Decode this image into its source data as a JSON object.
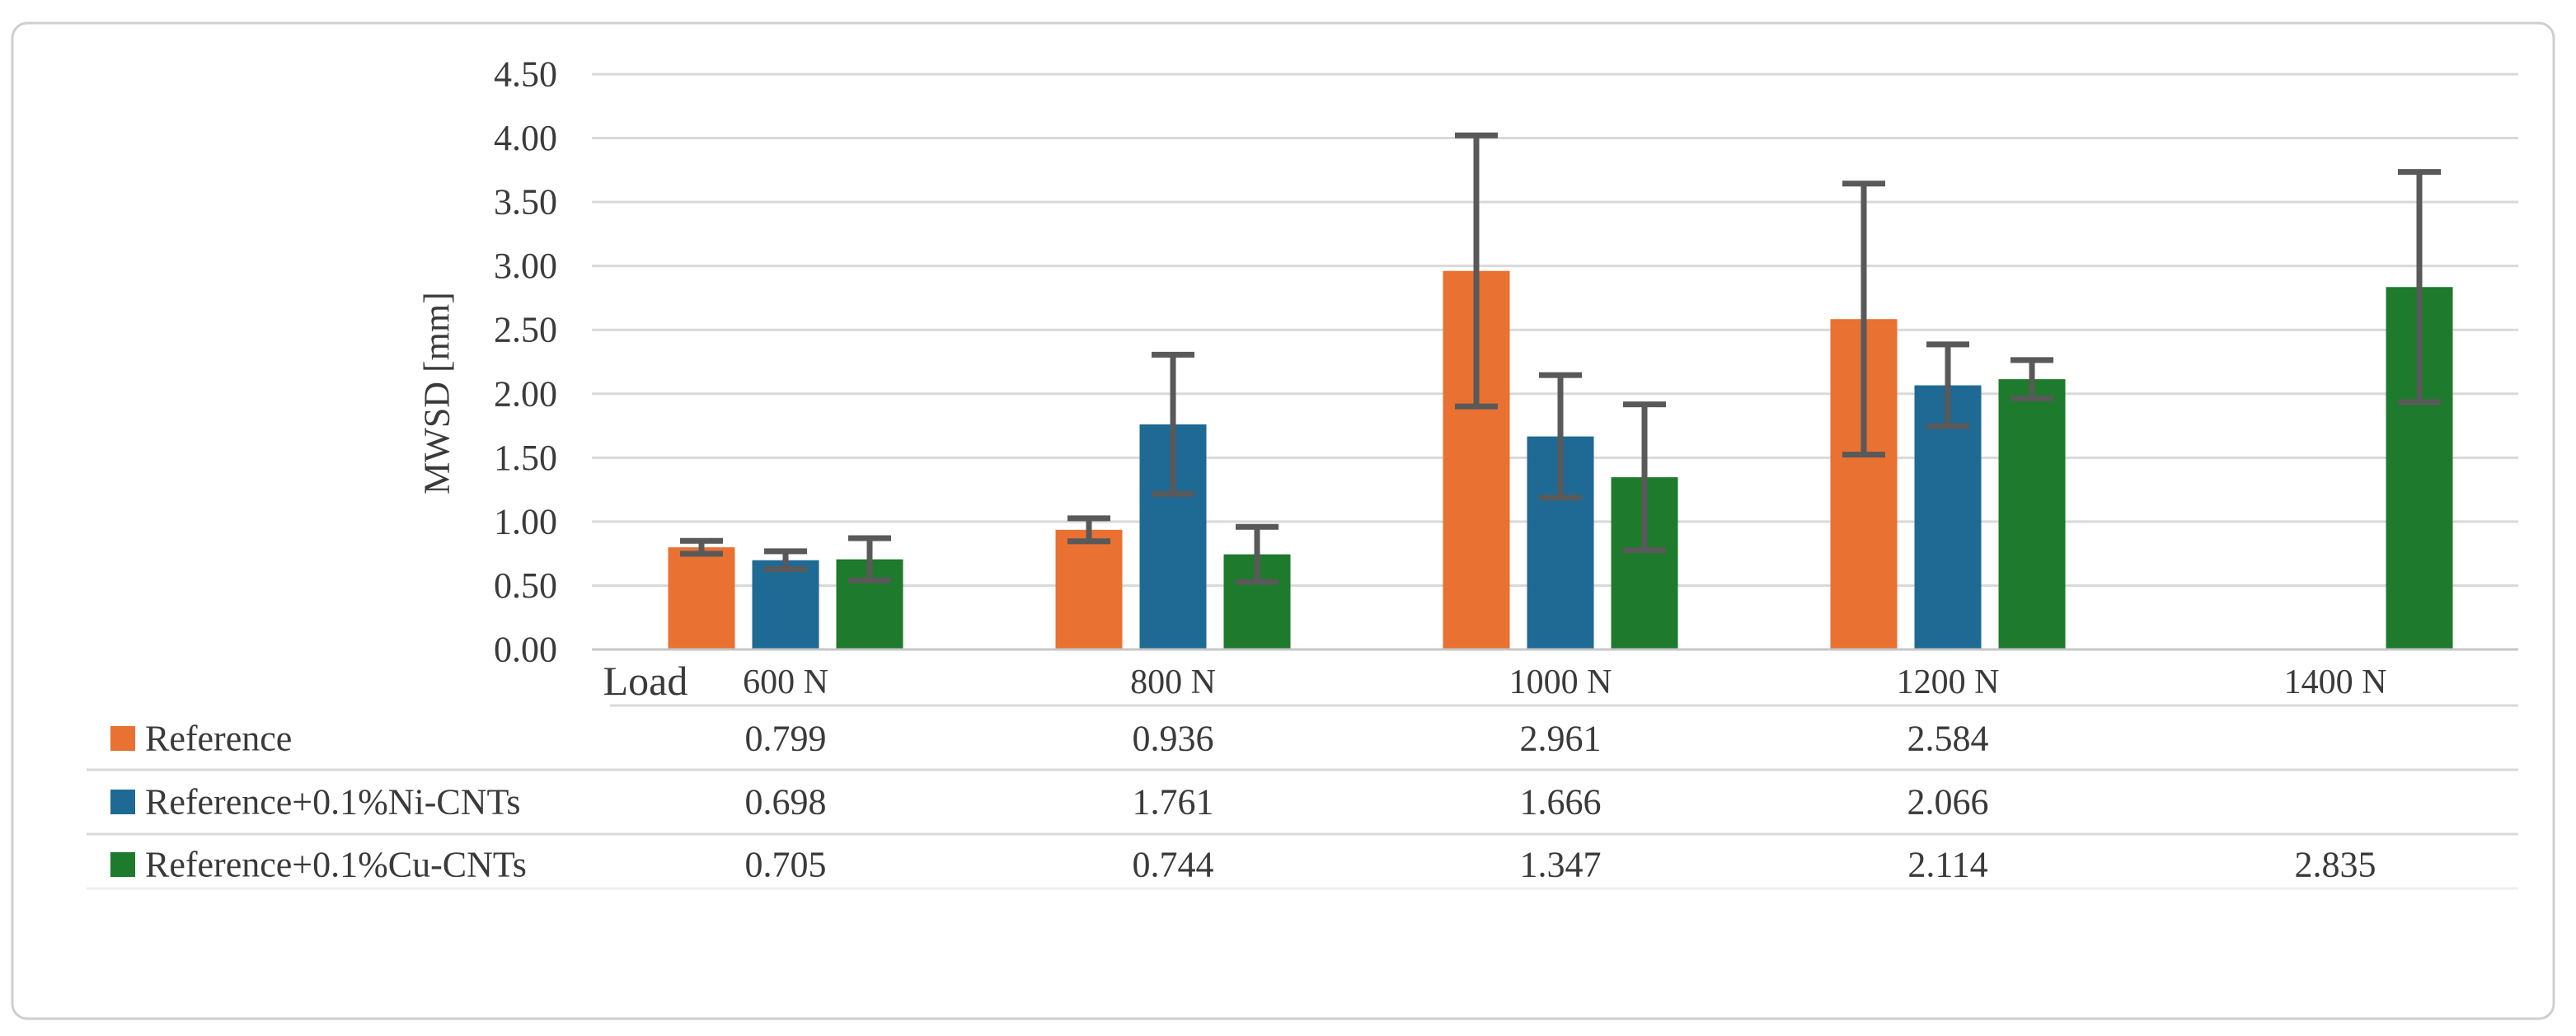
{
  "chart_data": {
    "type": "bar",
    "title": "",
    "ylabel": "MWSD [mm]",
    "corner_label": "Load",
    "categories": [
      "600 N",
      "800 N",
      "1000 N",
      "1200 N",
      "1400 N"
    ],
    "series": [
      {
        "name": "Reference",
        "color": "#E97132",
        "values": [
          0.799,
          0.936,
          2.961,
          2.584,
          null
        ],
        "errors": [
          0.05,
          0.09,
          1.06,
          1.06,
          null
        ]
      },
      {
        "name": "Reference+0.1%Ni-CNTs",
        "color": "#1E6A94",
        "values": [
          0.698,
          1.761,
          1.666,
          2.066,
          null
        ],
        "errors": [
          0.07,
          0.545,
          0.48,
          0.32,
          null
        ]
      },
      {
        "name": "Reference+0.1%Cu-CNTs",
        "color": "#1E7A2C",
        "values": [
          0.705,
          0.744,
          1.347,
          2.114,
          2.835
        ],
        "errors": [
          0.165,
          0.215,
          0.57,
          0.15,
          0.9
        ]
      }
    ],
    "ylim": [
      0,
      4.5
    ],
    "ytick_step": 0.5,
    "ytick_decimals": 2,
    "value_decimals": 3,
    "grid": true,
    "legend_position": "table-left",
    "colors": {
      "error_bar": "#595959",
      "gridline": "#D9D9D9",
      "axis_line": "#C6C6C6",
      "table_line": "#D9D9D9",
      "table_line_faint": "#EFEFEF",
      "text": "#3A3A3A",
      "border": "#D0CECE",
      "background": "#FFFFFF"
    }
  }
}
